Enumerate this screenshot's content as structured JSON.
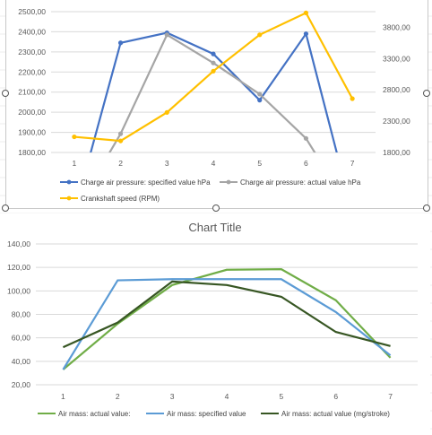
{
  "chart_data": [
    {
      "type": "line",
      "title": "",
      "categories": [
        "1",
        "2",
        "3",
        "4",
        "5",
        "6",
        "7"
      ],
      "y_primary": {
        "ylim": [
          1800,
          2500
        ],
        "ticks": [
          "1800,00",
          "1900,00",
          "2000,00",
          "2100,00",
          "2200,00",
          "2300,00",
          "2400,00",
          "2500,00"
        ]
      },
      "y_secondary": {
        "ylim": [
          1800,
          4050
        ],
        "ticks": [
          "1800,00",
          "2300,00",
          "2800,00",
          "3300,00",
          "3800,00"
        ]
      },
      "grid": true,
      "legend_position": "bottom",
      "series": [
        {
          "name": "Charge air pressure: specified value  hPa",
          "color": "#4472c4",
          "axis": "primary",
          "values": [
            1500,
            2345,
            2395,
            2290,
            2060,
            2390,
            1500
          ]
        },
        {
          "name": "Charge air pressure: actual value  hPa",
          "color": "#a5a5a5",
          "axis": "primary",
          "values": [
            1500,
            1893,
            2385,
            2245,
            2090,
            1870,
            1500
          ]
        },
        {
          "name": "Crankshaft speed (RPM)",
          "color": "#ffc000",
          "axis": "secondary",
          "values": [
            2050,
            1985,
            2440,
            3100,
            3680,
            4030,
            2660
          ]
        }
      ]
    },
    {
      "type": "line",
      "title": "Chart Title",
      "categories": [
        "1",
        "2",
        "3",
        "4",
        "5",
        "6",
        "7"
      ],
      "ylim": [
        20,
        140
      ],
      "ticks": [
        "20,00",
        "40,00",
        "60,00",
        "80,00",
        "100,00",
        "120,00",
        "140,00"
      ],
      "grid": true,
      "legend_position": "bottom",
      "series": [
        {
          "name": "Air mass: actual value:",
          "color": "#70ad47",
          "values": [
            33,
            72,
            105,
            118,
            118.5,
            92,
            43
          ]
        },
        {
          "name": "Air mass: specified value",
          "color": "#5b9bd5",
          "values": [
            33,
            109,
            110,
            110,
            110,
            82,
            45
          ]
        },
        {
          "name": "Air mass: actual value (mg/stroke)",
          "color": "#375623",
          "values": [
            52,
            73,
            108,
            105,
            95,
            65,
            53
          ]
        }
      ]
    }
  ]
}
